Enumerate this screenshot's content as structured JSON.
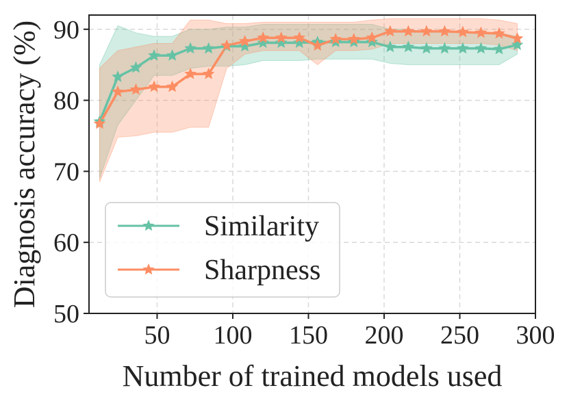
{
  "chart_data": {
    "type": "line",
    "title": "",
    "xlabel": "Number of trained models used",
    "ylabel": "Diagnosis accuracy (%)",
    "xlim": [
      5,
      300
    ],
    "ylim": [
      50,
      92
    ],
    "xticks": [
      50,
      100,
      150,
      200,
      250,
      300
    ],
    "yticks": [
      50,
      60,
      70,
      80,
      90
    ],
    "grid": true,
    "legend_position": "lower-left",
    "x": [
      12,
      24,
      36,
      48,
      60,
      72,
      84,
      96,
      108,
      120,
      132,
      144,
      156,
      168,
      180,
      192,
      204,
      216,
      228,
      240,
      252,
      264,
      276,
      288
    ],
    "series": [
      {
        "name": "Similarity",
        "color": "#66c2a5",
        "values": [
          77.0,
          83.3,
          84.6,
          86.3,
          86.3,
          87.3,
          87.3,
          87.6,
          87.6,
          88.1,
          88.1,
          88.1,
          88.2,
          88.2,
          88.2,
          88.2,
          87.5,
          87.5,
          87.3,
          87.3,
          87.3,
          87.3,
          87.2,
          87.8
        ],
        "lower": [
          69.0,
          76.5,
          80.0,
          83.5,
          83.5,
          84.5,
          84.8,
          84.8,
          85.0,
          85.6,
          85.6,
          85.6,
          85.8,
          85.8,
          85.8,
          85.8,
          85.2,
          85.0,
          85.0,
          85.0,
          85.0,
          85.0,
          85.0,
          86.5
        ],
        "upper": [
          85.0,
          90.5,
          89.5,
          89.0,
          89.0,
          90.0,
          90.0,
          90.3,
          90.3,
          90.7,
          90.7,
          90.7,
          90.7,
          90.7,
          90.7,
          90.7,
          90.0,
          90.0,
          89.6,
          89.6,
          89.6,
          89.6,
          89.5,
          89.0
        ]
      },
      {
        "name": "Sharpness",
        "color": "#fc8d62",
        "values": [
          76.7,
          81.2,
          81.5,
          81.9,
          81.9,
          83.7,
          83.7,
          87.7,
          88.3,
          88.8,
          88.8,
          88.8,
          87.7,
          88.6,
          88.6,
          88.8,
          89.7,
          89.7,
          89.7,
          89.7,
          89.6,
          89.5,
          89.4,
          88.7
        ],
        "lower": [
          68.5,
          74.8,
          75.0,
          75.5,
          75.5,
          76.2,
          76.2,
          84.5,
          86.5,
          87.0,
          87.0,
          87.0,
          85.0,
          87.0,
          87.0,
          87.2,
          88.0,
          88.0,
          88.0,
          88.0,
          88.0,
          88.0,
          87.8,
          87.0
        ],
        "upper": [
          84.5,
          87.0,
          87.5,
          88.0,
          88.0,
          91.3,
          91.3,
          90.8,
          90.8,
          91.0,
          91.0,
          91.0,
          91.0,
          91.0,
          91.0,
          91.3,
          91.5,
          91.5,
          91.5,
          91.5,
          91.5,
          91.5,
          91.3,
          90.8
        ]
      }
    ]
  }
}
